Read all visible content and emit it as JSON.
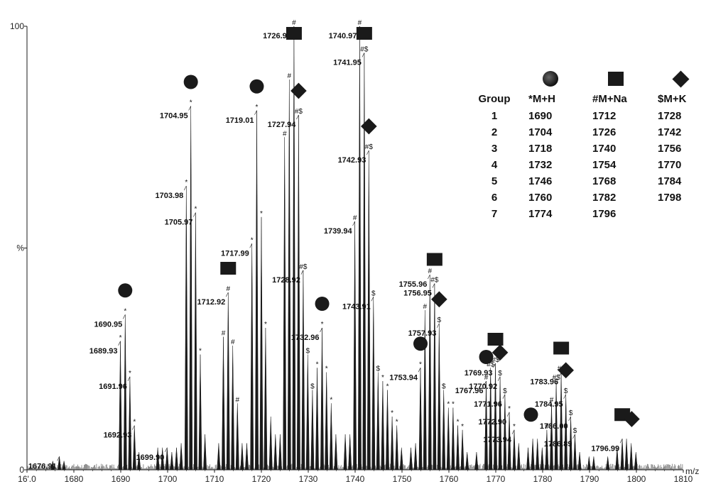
{
  "chart_data": {
    "type": "line",
    "title": "",
    "xlabel": "m/z",
    "ylabel": "%",
    "xlim": [
      1670,
      1810
    ],
    "ylim": [
      0,
      100
    ],
    "x_ticks": [
      "16'.0",
      "1680",
      "1690",
      "1700",
      "1710",
      "1720",
      "1730",
      "1740",
      "1750",
      "1760",
      "1770",
      "1780",
      "1790",
      "1800",
      "1810"
    ],
    "y_ticks": [
      {
        "label": "0",
        "value": 0
      },
      {
        "label": "%",
        "value": 50
      },
      {
        "label": "100",
        "value": 100
      }
    ],
    "peaks": [
      {
        "mz": 1675.5,
        "intensity": 2
      },
      {
        "mz": 1676.91,
        "intensity": 3
      },
      {
        "mz": 1677.9,
        "intensity": 2
      },
      {
        "mz": 1689.93,
        "intensity": 29,
        "marker": "*"
      },
      {
        "mz": 1690.95,
        "intensity": 35,
        "marker": "*"
      },
      {
        "mz": 1691.96,
        "intensity": 21,
        "marker": "*"
      },
      {
        "mz": 1692.93,
        "intensity": 10,
        "marker": "*"
      },
      {
        "mz": 1693.9,
        "intensity": 4
      },
      {
        "mz": 1697.9,
        "intensity": 5
      },
      {
        "mz": 1698.9,
        "intensity": 5
      },
      {
        "mz": 1699.9,
        "intensity": 5
      },
      {
        "mz": 1700.9,
        "intensity": 4
      },
      {
        "mz": 1701.9,
        "intensity": 5
      },
      {
        "mz": 1702.9,
        "intensity": 6
      },
      {
        "mz": 1703.98,
        "intensity": 64,
        "marker": "*"
      },
      {
        "mz": 1704.95,
        "intensity": 82,
        "marker": "*"
      },
      {
        "mz": 1705.97,
        "intensity": 58,
        "marker": "*"
      },
      {
        "mz": 1706.97,
        "intensity": 26,
        "marker": "*"
      },
      {
        "mz": 1707.97,
        "intensity": 8
      },
      {
        "mz": 1710.9,
        "intensity": 6
      },
      {
        "mz": 1711.9,
        "intensity": 30,
        "marker": "#"
      },
      {
        "mz": 1712.92,
        "intensity": 40,
        "marker": "#"
      },
      {
        "mz": 1713.9,
        "intensity": 28,
        "marker": "#"
      },
      {
        "mz": 1714.9,
        "intensity": 15,
        "marker": "#"
      },
      {
        "mz": 1715.9,
        "intensity": 6
      },
      {
        "mz": 1716.9,
        "intensity": 6
      },
      {
        "mz": 1717.99,
        "intensity": 51,
        "marker": "*"
      },
      {
        "mz": 1719.01,
        "intensity": 81,
        "marker": "*"
      },
      {
        "mz": 1720.0,
        "intensity": 57,
        "marker": "*"
      },
      {
        "mz": 1720.9,
        "intensity": 32,
        "marker": "*"
      },
      {
        "mz": 1722.0,
        "intensity": 12
      },
      {
        "mz": 1723.0,
        "intensity": 8
      },
      {
        "mz": 1724.0,
        "intensity": 8
      },
      {
        "mz": 1724.96,
        "intensity": 75,
        "marker": "#"
      },
      {
        "mz": 1725.96,
        "intensity": 88,
        "marker": "#"
      },
      {
        "mz": 1726.96,
        "intensity": 100,
        "marker": "#"
      },
      {
        "mz": 1727.94,
        "intensity": 80,
        "marker": "#$"
      },
      {
        "mz": 1728.92,
        "intensity": 45,
        "marker": "#$"
      },
      {
        "mz": 1729.9,
        "intensity": 26,
        "marker": "$"
      },
      {
        "mz": 1730.9,
        "intensity": 18,
        "marker": "$"
      },
      {
        "mz": 1731.9,
        "intensity": 23,
        "marker": "*"
      },
      {
        "mz": 1732.96,
        "intensity": 32,
        "marker": "*"
      },
      {
        "mz": 1733.9,
        "intensity": 22,
        "marker": "*"
      },
      {
        "mz": 1734.9,
        "intensity": 15,
        "marker": "*"
      },
      {
        "mz": 1735.9,
        "intensity": 8
      },
      {
        "mz": 1737.9,
        "intensity": 8
      },
      {
        "mz": 1738.9,
        "intensity": 8
      },
      {
        "mz": 1739.94,
        "intensity": 56,
        "marker": "#"
      },
      {
        "mz": 1740.97,
        "intensity": 100,
        "marker": "#"
      },
      {
        "mz": 1741.95,
        "intensity": 94,
        "marker": "#$"
      },
      {
        "mz": 1742.93,
        "intensity": 72,
        "marker": "#$"
      },
      {
        "mz": 1743.91,
        "intensity": 39,
        "marker": "$"
      },
      {
        "mz": 1744.9,
        "intensity": 22,
        "marker": "$"
      },
      {
        "mz": 1745.9,
        "intensity": 20,
        "marker": "*"
      },
      {
        "mz": 1746.9,
        "intensity": 18,
        "marker": "*"
      },
      {
        "mz": 1747.9,
        "intensity": 12,
        "marker": "*"
      },
      {
        "mz": 1748.9,
        "intensity": 10,
        "marker": "*"
      },
      {
        "mz": 1749.9,
        "intensity": 5
      },
      {
        "mz": 1751.9,
        "intensity": 5
      },
      {
        "mz": 1752.9,
        "intensity": 6
      },
      {
        "mz": 1753.94,
        "intensity": 23,
        "marker": "*"
      },
      {
        "mz": 1754.9,
        "intensity": 36,
        "marker": "#"
      },
      {
        "mz": 1755.96,
        "intensity": 44,
        "marker": "#"
      },
      {
        "mz": 1756.95,
        "intensity": 42,
        "marker": "#$"
      },
      {
        "mz": 1757.93,
        "intensity": 33,
        "marker": "$"
      },
      {
        "mz": 1758.9,
        "intensity": 18,
        "marker": "$"
      },
      {
        "mz": 1759.9,
        "intensity": 14,
        "marker": "*"
      },
      {
        "mz": 1760.9,
        "intensity": 14,
        "marker": "*"
      },
      {
        "mz": 1761.9,
        "intensity": 10,
        "marker": "*"
      },
      {
        "mz": 1762.9,
        "intensity": 9,
        "marker": "*"
      },
      {
        "mz": 1763.9,
        "intensity": 4
      },
      {
        "mz": 1765.9,
        "intensity": 4
      },
      {
        "mz": 1767.96,
        "intensity": 20,
        "marker": "#"
      },
      {
        "mz": 1768.9,
        "intensity": 23,
        "marker": "#$"
      },
      {
        "mz": 1769.93,
        "intensity": 24,
        "marker": "#$"
      },
      {
        "mz": 1770.92,
        "intensity": 21,
        "marker": "$"
      },
      {
        "mz": 1771.96,
        "intensity": 17,
        "marker": "$"
      },
      {
        "mz": 1772.9,
        "intensity": 13,
        "marker": "*"
      },
      {
        "mz": 1773.94,
        "intensity": 9,
        "marker": "*"
      },
      {
        "mz": 1774.9,
        "intensity": 6
      },
      {
        "mz": 1776.9,
        "intensity": 5
      },
      {
        "mz": 1777.9,
        "intensity": 7
      },
      {
        "mz": 1778.9,
        "intensity": 7
      },
      {
        "mz": 1779.9,
        "intensity": 5
      },
      {
        "mz": 1780.9,
        "intensity": 9,
        "marker": "#"
      },
      {
        "mz": 1781.9,
        "intensity": 15,
        "marker": "#"
      },
      {
        "mz": 1782.9,
        "intensity": 20,
        "marker": "#$"
      },
      {
        "mz": 1783.96,
        "intensity": 22,
        "marker": "#$"
      },
      {
        "mz": 1784.95,
        "intensity": 17,
        "marker": "$"
      },
      {
        "mz": 1786.0,
        "intensity": 12,
        "marker": "$"
      },
      {
        "mz": 1786.89,
        "intensity": 8,
        "marker": "$"
      },
      {
        "mz": 1787.9,
        "intensity": 4
      },
      {
        "mz": 1789.9,
        "intensity": 3
      },
      {
        "mz": 1790.9,
        "intensity": 3
      },
      {
        "mz": 1793.9,
        "intensity": 3
      },
      {
        "mz": 1795.9,
        "intensity": 5
      },
      {
        "mz": 1796.99,
        "intensity": 7
      },
      {
        "mz": 1797.9,
        "intensity": 7
      },
      {
        "mz": 1798.9,
        "intensity": 6
      },
      {
        "mz": 1799.9,
        "intensity": 4
      }
    ],
    "peak_labels": [
      {
        "text": "1676.91",
        "mz": 1676.91,
        "intensity": 3
      },
      {
        "text": "1689.93",
        "mz": 1689.93,
        "intensity": 29,
        "marker": "*"
      },
      {
        "text": "1690.95",
        "mz": 1690.95,
        "intensity": 35,
        "marker": "*"
      },
      {
        "text": "1691.96",
        "mz": 1691.96,
        "intensity": 21,
        "marker": "*"
      },
      {
        "text": "1692.93",
        "mz": 1692.93,
        "intensity": 10,
        "marker": "*"
      },
      {
        "text": "1699.90",
        "mz": 1699.9,
        "intensity": 5
      },
      {
        "text": "1703.98",
        "mz": 1703.98,
        "intensity": 64,
        "marker": "*"
      },
      {
        "text": "1704.95",
        "mz": 1704.95,
        "intensity": 82,
        "marker": "*"
      },
      {
        "text": "1705.97",
        "mz": 1705.97,
        "intensity": 58,
        "marker": "*"
      },
      {
        "text": "1712.92",
        "mz": 1712.92,
        "intensity": 40,
        "marker": "#"
      },
      {
        "text": "1717.99",
        "mz": 1717.99,
        "intensity": 51,
        "marker": "*"
      },
      {
        "text": "1719.01",
        "mz": 1719.01,
        "intensity": 81,
        "marker": "*"
      },
      {
        "text": "1726.96",
        "mz": 1726.96,
        "intensity": 100,
        "marker": "#"
      },
      {
        "text": "1727.94",
        "mz": 1727.94,
        "intensity": 80,
        "marker": "#$"
      },
      {
        "text": "1728.92",
        "mz": 1728.92,
        "intensity": 45,
        "marker": "#$"
      },
      {
        "text": "1732.96",
        "mz": 1732.96,
        "intensity": 32,
        "marker": "*"
      },
      {
        "text": "1739.94",
        "mz": 1739.94,
        "intensity": 56,
        "marker": "#"
      },
      {
        "text": "1740.97",
        "mz": 1740.97,
        "intensity": 100,
        "marker": "#"
      },
      {
        "text": "1741.95",
        "mz": 1741.95,
        "intensity": 94,
        "marker": "#$"
      },
      {
        "text": "1742.93",
        "mz": 1742.93,
        "intensity": 72,
        "marker": "#$"
      },
      {
        "text": "1743.91",
        "mz": 1743.91,
        "intensity": 39,
        "marker": "$"
      },
      {
        "text": "1753.94",
        "mz": 1753.94,
        "intensity": 23,
        "marker": "*"
      },
      {
        "text": "1755.96",
        "mz": 1755.96,
        "intensity": 44,
        "marker": "#$"
      },
      {
        "text": "1756.95",
        "mz": 1756.95,
        "intensity": 42,
        "marker": "#$"
      },
      {
        "text": "1757.93",
        "mz": 1757.93,
        "intensity": 33,
        "marker": "$"
      },
      {
        "text": "1767.96",
        "mz": 1767.96,
        "intensity": 20,
        "marker": "#"
      },
      {
        "text": "1769.93",
        "mz": 1769.93,
        "intensity": 24,
        "marker": "#$"
      },
      {
        "text": "1770.92",
        "mz": 1770.92,
        "intensity": 21,
        "marker": "$"
      },
      {
        "text": "1771.96",
        "mz": 1771.96,
        "intensity": 17,
        "marker": "$"
      },
      {
        "text": "1772.90",
        "mz": 1772.9,
        "intensity": 13
      },
      {
        "text": "1773.94",
        "mz": 1773.94,
        "intensity": 9,
        "marker": "*"
      },
      {
        "text": "1783.96",
        "mz": 1783.96,
        "intensity": 22,
        "marker": "#$"
      },
      {
        "text": "1784.95",
        "mz": 1784.95,
        "intensity": 17,
        "marker": "#$"
      },
      {
        "text": "1786.00",
        "mz": 1786.0,
        "intensity": 12,
        "marker": "#$"
      },
      {
        "text": "1786.89",
        "mz": 1786.89,
        "intensity": 8,
        "marker": "$"
      },
      {
        "text": "1796.99",
        "mz": 1796.99,
        "intensity": 7,
        "marker": "$$$"
      }
    ],
    "ion_symbols": [
      {
        "shape": "circle",
        "mz": 1690.95
      },
      {
        "shape": "circle",
        "mz": 1704.95
      },
      {
        "shape": "circle",
        "mz": 1719.01
      },
      {
        "shape": "circle",
        "mz": 1732.96
      },
      {
        "shape": "circle",
        "mz": 1753.94
      },
      {
        "shape": "circle",
        "mz": 1767.96
      },
      {
        "shape": "circle",
        "mz": 1777.5
      },
      {
        "shape": "square",
        "mz": 1712.92
      },
      {
        "shape": "square",
        "mz": 1726.96
      },
      {
        "shape": "square",
        "mz": 1741.95
      },
      {
        "shape": "square",
        "mz": 1756.95
      },
      {
        "shape": "square",
        "mz": 1769.93
      },
      {
        "shape": "square",
        "mz": 1783.96
      },
      {
        "shape": "square",
        "mz": 1796.99
      },
      {
        "shape": "diamond",
        "mz": 1727.94
      },
      {
        "shape": "diamond",
        "mz": 1742.93
      },
      {
        "shape": "diamond",
        "mz": 1757.93
      },
      {
        "shape": "diamond",
        "mz": 1770.92
      },
      {
        "shape": "diamond",
        "mz": 1784.95
      },
      {
        "shape": "diamond",
        "mz": 1799.0
      }
    ]
  },
  "legend_table": {
    "headers": [
      "Group",
      "*M+H",
      "#M+Na",
      "$M+K"
    ],
    "symbols": [
      "circle",
      "square",
      "diamond"
    ],
    "rows": [
      [
        "1",
        "1690",
        "1712",
        "1728"
      ],
      [
        "2",
        "1704",
        "1726",
        "1742"
      ],
      [
        "3",
        "1718",
        "1740",
        "1756"
      ],
      [
        "4",
        "1732",
        "1754",
        "1770"
      ],
      [
        "5",
        "1746",
        "1768",
        "1784"
      ],
      [
        "6",
        "1760",
        "1782",
        "1798"
      ],
      [
        "7",
        "1774",
        "1796",
        ""
      ]
    ]
  },
  "colors": {
    "trace": "#1a1a1a",
    "marker_fill": "#1a1a1a",
    "background": "#ffffff"
  }
}
